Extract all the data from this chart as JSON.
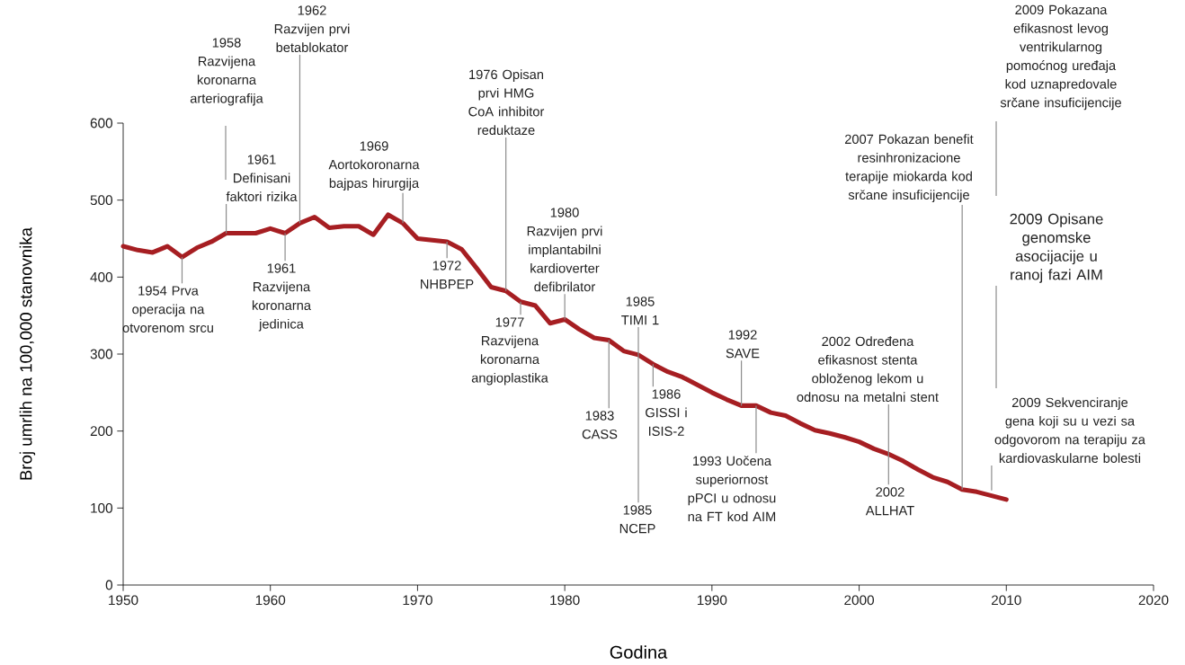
{
  "chart_data": {
    "type": "line",
    "xlabel": "Godina",
    "ylabel": "Broj umrlih na 100,000 stanovnika",
    "x": [
      1950,
      1951,
      1952,
      1953,
      1954,
      1955,
      1956,
      1957,
      1958,
      1959,
      1960,
      1961,
      1962,
      1963,
      1964,
      1965,
      1966,
      1967,
      1968,
      1969,
      1970,
      1971,
      1972,
      1973,
      1974,
      1975,
      1976,
      1977,
      1978,
      1979,
      1980,
      1981,
      1982,
      1983,
      1984,
      1985,
      1986,
      1987,
      1988,
      1989,
      1990,
      1991,
      1992,
      1993,
      1994,
      1995,
      1996,
      1997,
      1998,
      1999,
      2000,
      2001,
      2002,
      2003,
      2004,
      2005,
      2006,
      2007,
      2008,
      2009,
      2010
    ],
    "values": [
      440,
      435,
      432,
      440,
      426,
      438,
      446,
      457,
      457,
      457,
      463,
      457,
      470,
      478,
      464,
      466,
      466,
      455,
      481,
      470,
      450,
      448,
      446,
      436,
      412,
      387,
      382,
      368,
      363,
      340,
      345,
      332,
      321,
      318,
      304,
      299,
      287,
      277,
      270,
      260,
      250,
      241,
      233,
      233,
      224,
      220,
      210,
      201,
      197,
      192,
      186,
      177,
      170,
      161,
      150,
      140,
      134,
      124,
      121,
      116,
      111
    ],
    "color": "#a61e22",
    "xlim": [
      1950,
      2020
    ],
    "ylim": [
      0,
      600
    ],
    "xticks": [
      1950,
      1960,
      1970,
      1980,
      1990,
      2000,
      2010,
      2020
    ],
    "yticks": [
      0,
      100,
      200,
      300,
      400,
      500,
      600
    ],
    "annotations": [
      {
        "text": "1954 Prva operacija na otvorenom srcu",
        "x": 1954,
        "y": 426
      },
      "1958 Razvijena koronarna arteriografija",
      {
        "text": "1961 Definisani faktori rizika",
        "x": 1957,
        "y": 457
      },
      {
        "text": "1961 Razvijena koronarna jedinica",
        "x": 1961,
        "y": 457
      },
      {
        "text": "1962 Razvijen prvi betablokator",
        "x": 1962,
        "y": 470
      },
      {
        "text": "1969 Aortokoronarna bajpas hirurgija",
        "x": 1969,
        "y": 470
      },
      {
        "text": "1972 NHBPEP",
        "x": 1972,
        "y": 446
      },
      {
        "text": "1976 Opisan prvi HMG CoA inhibitor reduktaze",
        "x": 1976,
        "y": 382
      },
      {
        "text": "1977 Razvijena koronarna angioplastika",
        "x": 1977,
        "y": 368
      },
      {
        "text": "1980 Razvijen prvi implantabilni kardioverter defibrilator",
        "x": 1980,
        "y": 345
      },
      {
        "text": "1983 CASS",
        "x": 1983,
        "y": 318
      },
      {
        "text": "1985 TIMI 1",
        "x": 1985,
        "y": 299
      },
      {
        "text": "1985 NCEP",
        "x": 1985,
        "y": 299
      },
      {
        "text": "1986 GISSI i ISIS-2",
        "x": 1986,
        "y": 287
      },
      {
        "text": "1992 SAVE",
        "x": 1992,
        "y": 233
      },
      {
        "text": "1993 Uočena superiornost pPCI u odnosu na FT kod AIM",
        "x": 1993,
        "y": 233
      },
      {
        "text": "2002 Određena efikasnost stenta obloženog lekom u odnosu na metalni stent",
        "x": 2002,
        "y": 170
      },
      {
        "text": "2002 ALLHAT",
        "x": 2002,
        "y": 170
      },
      {
        "text": "2007 Pokazan benefit resinhronizacione terapije miokarda kod srčane insuficijencije",
        "x": 2007,
        "y": 124
      },
      "2009 Pokazana efikasnost levog ventrikularnog pomoćnog uređaja kod uznapredovale srčane insuficijencije",
      "2009 Opisane genomske asocijacije u ranoj fazi AIM",
      {
        "text": "2009 Sekvenciranje gena koji su u vezi sa odgovorom na terapiju za kardiovaskularne bolesti",
        "x": 2009,
        "y": 116
      }
    ]
  }
}
